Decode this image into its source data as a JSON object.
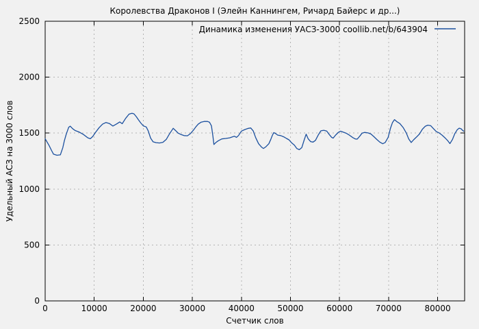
{
  "chart_data": {
    "type": "line",
    "title": "Королевства Драконов I (Элейн Каннингем, Ричард Байерс и др...)",
    "xlabel": "Счетчик слов",
    "ylabel": "Удельный АСЗ на 3000 слов",
    "legend": {
      "label": "Динамика изменения УАСЗ-3000 coollib.net/b/643904",
      "position": "top-right-inside"
    },
    "xlim": [
      0,
      85500
    ],
    "ylim": [
      0,
      2500
    ],
    "x_ticks": [
      0,
      10000,
      20000,
      30000,
      40000,
      50000,
      60000,
      70000,
      80000
    ],
    "y_ticks": [
      0,
      500,
      1000,
      1500,
      2000,
      2500
    ],
    "grid": true,
    "grid_style": "dotted",
    "colors": {
      "line": "#1a4f9e",
      "grid": "#b3b3b3",
      "background": "#f1f1f1",
      "border": "#000000",
      "text": "#000000"
    },
    "series": [
      {
        "name": "Динамика изменения УАСЗ-3000 coollib.net/b/643904",
        "points": [
          [
            0,
            1450
          ],
          [
            800,
            1390
          ],
          [
            1300,
            1345
          ],
          [
            1700,
            1312
          ],
          [
            2400,
            1302
          ],
          [
            3100,
            1306
          ],
          [
            3600,
            1370
          ],
          [
            3900,
            1430
          ],
          [
            4300,
            1490
          ],
          [
            4800,
            1552
          ],
          [
            5100,
            1562
          ],
          [
            5600,
            1540
          ],
          [
            6100,
            1523
          ],
          [
            7000,
            1508
          ],
          [
            7800,
            1488
          ],
          [
            8700,
            1458
          ],
          [
            9200,
            1450
          ],
          [
            9700,
            1470
          ],
          [
            10300,
            1508
          ],
          [
            11000,
            1549
          ],
          [
            11700,
            1580
          ],
          [
            12400,
            1595
          ],
          [
            13100,
            1586
          ],
          [
            13800,
            1563
          ],
          [
            14500,
            1580
          ],
          [
            15200,
            1600
          ],
          [
            15700,
            1584
          ],
          [
            16400,
            1632
          ],
          [
            17100,
            1670
          ],
          [
            17700,
            1678
          ],
          [
            18100,
            1672
          ],
          [
            18600,
            1645
          ],
          [
            19000,
            1620
          ],
          [
            19500,
            1590
          ],
          [
            20000,
            1565
          ],
          [
            20600,
            1555
          ],
          [
            21000,
            1520
          ],
          [
            21500,
            1455
          ],
          [
            22000,
            1422
          ],
          [
            22600,
            1415
          ],
          [
            23300,
            1412
          ],
          [
            24000,
            1418
          ],
          [
            24700,
            1445
          ],
          [
            25300,
            1490
          ],
          [
            25900,
            1530
          ],
          [
            26100,
            1543
          ],
          [
            26600,
            1522
          ],
          [
            27100,
            1500
          ],
          [
            27700,
            1487
          ],
          [
            28300,
            1478
          ],
          [
            29000,
            1476
          ],
          [
            29600,
            1495
          ],
          [
            30200,
            1525
          ],
          [
            30700,
            1555
          ],
          [
            31200,
            1580
          ],
          [
            31800,
            1598
          ],
          [
            32400,
            1604
          ],
          [
            33100,
            1604
          ],
          [
            33500,
            1597
          ],
          [
            33900,
            1565
          ],
          [
            34200,
            1470
          ],
          [
            34400,
            1398
          ],
          [
            34800,
            1416
          ],
          [
            35300,
            1432
          ],
          [
            36000,
            1448
          ],
          [
            36800,
            1452
          ],
          [
            37600,
            1458
          ],
          [
            38300,
            1468
          ],
          [
            38600,
            1472
          ],
          [
            39000,
            1462
          ],
          [
            39400,
            1478
          ],
          [
            40000,
            1518
          ],
          [
            40700,
            1532
          ],
          [
            41400,
            1542
          ],
          [
            41900,
            1546
          ],
          [
            42400,
            1520
          ],
          [
            42900,
            1460
          ],
          [
            43500,
            1405
          ],
          [
            44100,
            1375
          ],
          [
            44500,
            1363
          ],
          [
            45000,
            1378
          ],
          [
            45600,
            1405
          ],
          [
            46000,
            1445
          ],
          [
            46300,
            1480
          ],
          [
            46600,
            1505
          ],
          [
            47000,
            1495
          ],
          [
            47400,
            1482
          ],
          [
            48000,
            1478
          ],
          [
            48700,
            1465
          ],
          [
            49200,
            1452
          ],
          [
            49700,
            1440
          ],
          [
            50200,
            1415
          ],
          [
            50800,
            1392
          ],
          [
            51300,
            1362
          ],
          [
            51800,
            1352
          ],
          [
            52300,
            1370
          ],
          [
            52800,
            1440
          ],
          [
            53200,
            1490
          ],
          [
            53600,
            1450
          ],
          [
            54100,
            1424
          ],
          [
            54600,
            1420
          ],
          [
            55100,
            1435
          ],
          [
            55700,
            1485
          ],
          [
            56200,
            1520
          ],
          [
            56800,
            1525
          ],
          [
            57400,
            1518
          ],
          [
            57900,
            1488
          ],
          [
            58400,
            1462
          ],
          [
            58700,
            1455
          ],
          [
            59200,
            1482
          ],
          [
            59800,
            1508
          ],
          [
            60200,
            1517
          ],
          [
            60800,
            1508
          ],
          [
            61400,
            1498
          ],
          [
            62000,
            1482
          ],
          [
            62700,
            1460
          ],
          [
            63200,
            1448
          ],
          [
            63600,
            1446
          ],
          [
            64100,
            1472
          ],
          [
            64600,
            1500
          ],
          [
            65100,
            1506
          ],
          [
            65800,
            1502
          ],
          [
            66400,
            1492
          ],
          [
            67000,
            1468
          ],
          [
            67600,
            1443
          ],
          [
            68200,
            1420
          ],
          [
            68800,
            1405
          ],
          [
            69300,
            1416
          ],
          [
            69900,
            1462
          ],
          [
            70400,
            1545
          ],
          [
            70800,
            1595
          ],
          [
            71200,
            1621
          ],
          [
            71700,
            1602
          ],
          [
            72300,
            1585
          ],
          [
            73000,
            1548
          ],
          [
            73600,
            1502
          ],
          [
            74100,
            1448
          ],
          [
            74600,
            1416
          ],
          [
            75100,
            1440
          ],
          [
            75700,
            1465
          ],
          [
            76300,
            1492
          ],
          [
            76900,
            1535
          ],
          [
            77500,
            1562
          ],
          [
            78000,
            1571
          ],
          [
            78600,
            1566
          ],
          [
            79100,
            1542
          ],
          [
            79700,
            1515
          ],
          [
            80300,
            1502
          ],
          [
            80900,
            1482
          ],
          [
            81500,
            1458
          ],
          [
            82100,
            1430
          ],
          [
            82500,
            1406
          ],
          [
            83000,
            1442
          ],
          [
            83500,
            1496
          ],
          [
            84000,
            1530
          ],
          [
            84400,
            1544
          ],
          [
            84800,
            1538
          ],
          [
            85100,
            1524
          ],
          [
            85300,
            1518
          ]
        ]
      }
    ]
  }
}
